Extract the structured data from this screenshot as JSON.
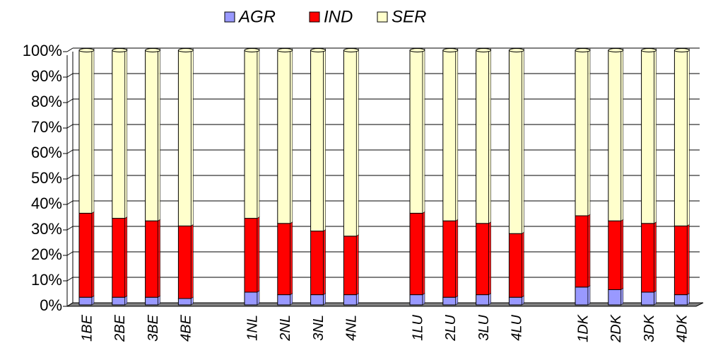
{
  "chart_data": {
    "type": "stacked_bar",
    "categories": [
      "1BE",
      "2BE",
      "3BE",
      "4BE",
      null,
      "1NL",
      "2NL",
      "3NL",
      "4NL",
      null,
      "1LU",
      "2LU",
      "3LU",
      "4LU",
      null,
      "1DK",
      "2DK",
      "3DK",
      "4DK"
    ],
    "series": [
      {
        "name": "AGR",
        "color": "#9999ff",
        "values": [
          3,
          3,
          3,
          2.5,
          null,
          5,
          4,
          4,
          4,
          null,
          4,
          3,
          4,
          3,
          null,
          7,
          6,
          5,
          4
        ]
      },
      {
        "name": "IND",
        "color": "#ff0000",
        "values": [
          33,
          31,
          30,
          28.5,
          null,
          29,
          28,
          25,
          23,
          null,
          32,
          30,
          28,
          25,
          null,
          28,
          27,
          27,
          27
        ]
      },
      {
        "name": "SER",
        "color": "#ffffcc",
        "values": [
          64,
          66,
          67,
          69,
          null,
          66,
          68,
          71,
          73,
          null,
          64,
          67,
          68,
          72,
          null,
          65,
          67,
          68,
          69
        ]
      }
    ],
    "ylim": [
      0,
      100
    ],
    "yticks": [
      {
        "value": 0,
        "label": "0%"
      },
      {
        "value": 10,
        "label": "10%"
      },
      {
        "value": 20,
        "label": "20%"
      },
      {
        "value": 30,
        "label": "30%"
      },
      {
        "value": 40,
        "label": "40%"
      },
      {
        "value": 50,
        "label": "50%"
      },
      {
        "value": 60,
        "label": "60%"
      },
      {
        "value": 70,
        "label": "70%"
      },
      {
        "value": 80,
        "label": "80%"
      },
      {
        "value": 90,
        "label": "90%"
      },
      {
        "value": 100,
        "label": "100%"
      }
    ],
    "grid": true,
    "legend": "top"
  }
}
